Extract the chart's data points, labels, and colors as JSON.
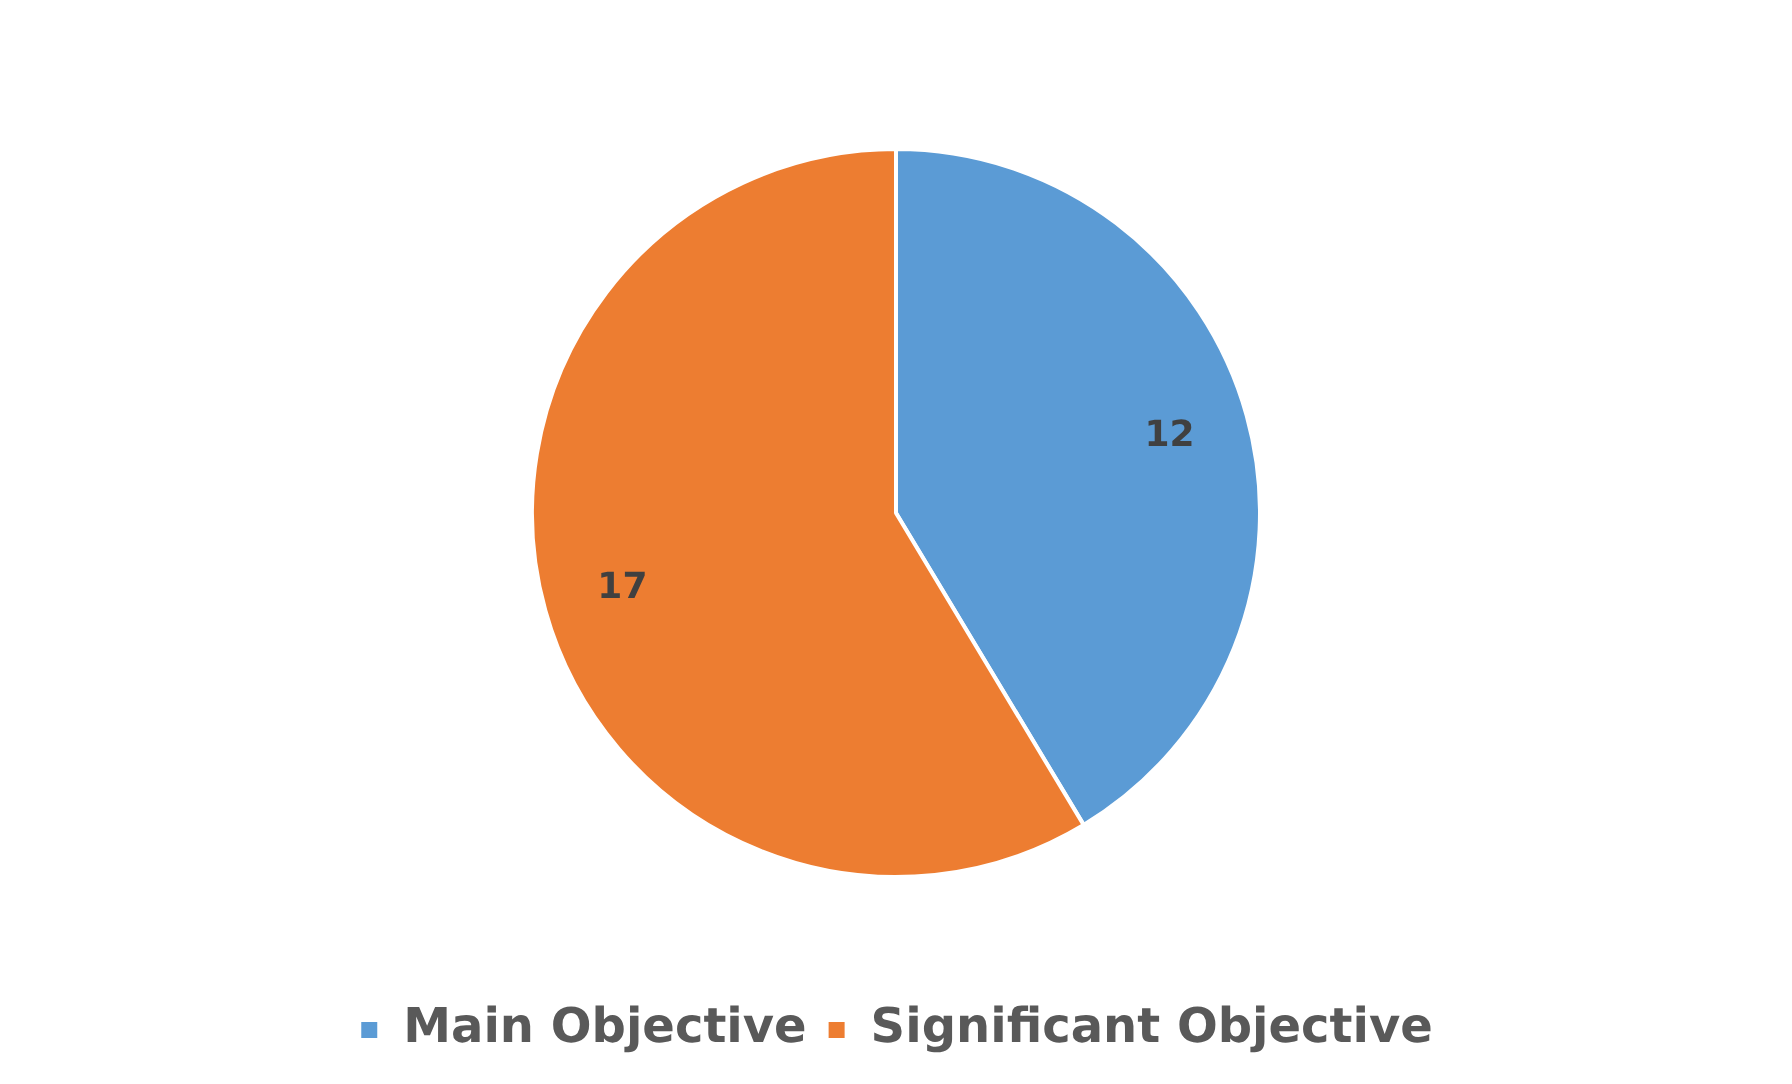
{
  "chart_data": {
    "type": "pie",
    "categories": [
      "Main Objective",
      "Significant Objective"
    ],
    "values": [
      12,
      17
    ],
    "colors": [
      "#5b9bd5",
      "#ed7d31"
    ],
    "data_labels": true,
    "legend": "bottom"
  }
}
